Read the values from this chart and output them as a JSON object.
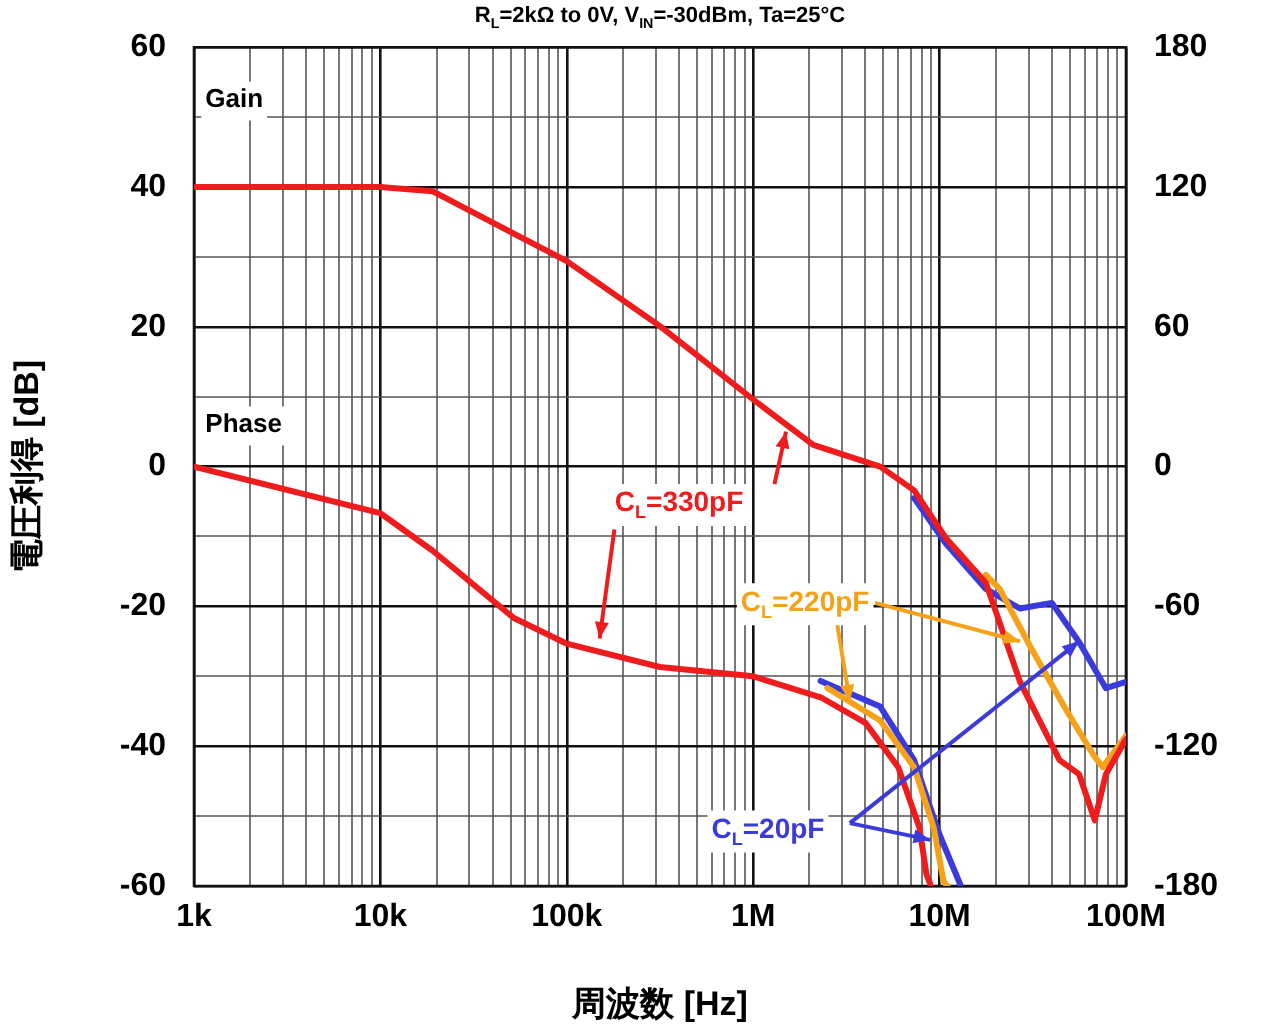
{
  "chart_data": {
    "type": "line",
    "title": "R$_{L}$=2kΩ to 0V, V$_{IN}$=-30dBm, Ta=25°C",
    "xlabel": "周波数 [Hz]",
    "ylabel": "電圧利得 [dB]",
    "log": "x",
    "grid": true,
    "legend": false,
    "marker": "none",
    "xlim": [
      1000,
      100000000
    ],
    "xticks": [
      {
        "value": 1000,
        "label": "1k"
      },
      {
        "value": 2000,
        "label": null
      },
      {
        "value": 3000,
        "label": null
      },
      {
        "value": 4000,
        "label": null
      },
      {
        "value": 5000,
        "label": null
      },
      {
        "value": 6000,
        "label": null
      },
      {
        "value": 7000,
        "label": null
      },
      {
        "value": 8000,
        "label": null
      },
      {
        "value": 9000,
        "label": null
      },
      {
        "value": 10000,
        "label": "10k"
      },
      {
        "value": 20000,
        "label": null
      },
      {
        "value": 30000,
        "label": null
      },
      {
        "value": 40000,
        "label": null
      },
      {
        "value": 50000,
        "label": null
      },
      {
        "value": 60000,
        "label": null
      },
      {
        "value": 70000,
        "label": null
      },
      {
        "value": 80000,
        "label": null
      },
      {
        "value": 90000,
        "label": null
      },
      {
        "value": 100000,
        "label": "100k"
      },
      {
        "value": 200000,
        "label": null
      },
      {
        "value": 300000,
        "label": null
      },
      {
        "value": 400000,
        "label": null
      },
      {
        "value": 500000,
        "label": null
      },
      {
        "value": 600000,
        "label": null
      },
      {
        "value": 700000,
        "label": null
      },
      {
        "value": 800000,
        "label": null
      },
      {
        "value": 900000,
        "label": null
      },
      {
        "value": 1000000,
        "label": "1M"
      },
      {
        "value": 2000000,
        "label": null
      },
      {
        "value": 3000000,
        "label": null
      },
      {
        "value": 4000000,
        "label": null
      },
      {
        "value": 5000000,
        "label": null
      },
      {
        "value": 6000000,
        "label": null
      },
      {
        "value": 7000000,
        "label": null
      },
      {
        "value": 8000000,
        "label": null
      },
      {
        "value": 9000000,
        "label": null
      },
      {
        "value": 10000000,
        "label": "10M"
      },
      {
        "value": 20000000,
        "label": null
      },
      {
        "value": 30000000,
        "label": null
      },
      {
        "value": 40000000,
        "label": null
      },
      {
        "value": 50000000,
        "label": null
      },
      {
        "value": 60000000,
        "label": null
      },
      {
        "value": 70000000,
        "label": null
      },
      {
        "value": 80000000,
        "label": null
      },
      {
        "value": 90000000,
        "label": null
      },
      {
        "value": 100000000,
        "label": "100M"
      }
    ],
    "ylim": [
      -60,
      60
    ],
    "yticks": [
      -60,
      {
        "value": -50,
        "label": null
      },
      -40,
      {
        "value": -30,
        "label": null
      },
      -20,
      {
        "value": -10,
        "label": null
      },
      0,
      {
        "value": 10,
        "label": null
      },
      20,
      {
        "value": 30,
        "label": null
      },
      40,
      {
        "value": 50,
        "label": null
      },
      60
    ],
    "y2lim": [
      -180,
      180
    ],
    "y2ticks": [
      -180,
      -120,
      -60,
      0,
      60,
      120,
      180
    ],
    "series": [
      {
        "color": "#3b3bdb",
        "x": [
          7300000,
          10800000,
          17700000,
          27000000,
          40000000,
          56000000,
          78000000,
          100000000
        ],
        "values": [
          -4.5,
          -11,
          -17.5,
          -20.3,
          -19.5,
          -25.1,
          -31.7,
          -30.8
        ]
      },
      {
        "color": "#f5a21b",
        "x": [
          17700000,
          21000000,
          31000000,
          47000000,
          67000000,
          75000000,
          100000000
        ],
        "values": [
          -15.5,
          -17.5,
          -26,
          -34.5,
          -41.3,
          -43,
          -38.5
        ]
      },
      {
        "color": "#ee1c1c",
        "x": [
          1000,
          10000,
          19000,
          100000,
          316000,
          1000000,
          2100000,
          4800000,
          7300000,
          10800000,
          17700000,
          27000000,
          44000000,
          56000000,
          68000000,
          78000000,
          100000000
        ],
        "values": [
          40,
          40,
          39.4,
          29.4,
          20.1,
          9.6,
          3.1,
          0,
          -3.4,
          -10.2,
          -16.6,
          -30.8,
          -42,
          -44,
          -50.6,
          -44,
          -39
        ]
      },
      {
        "color": "#3b3bdb",
        "axis": "y2",
        "x": [
          2300000,
          4800000,
          7300000,
          10000000,
          13000000
        ],
        "values": [
          -92,
          -103,
          -126,
          -158,
          -180
        ]
      },
      {
        "color": "#f5a21b",
        "axis": "y2",
        "x": [
          2500000,
          4800000,
          7300000,
          9300000,
          10500000,
          11000000
        ],
        "values": [
          -95,
          -109,
          -129,
          -155,
          -178,
          -180
        ]
      },
      {
        "color": "#ee1c1c",
        "axis": "y2",
        "x": [
          1000,
          10000,
          19000,
          52000,
          100000,
          316000,
          1000000,
          2300000,
          4000000,
          6000000,
          7800000,
          8500000,
          9000000
        ],
        "values": [
          0,
          -20,
          -36,
          -65,
          -76,
          -86,
          -90,
          -99,
          -110,
          -129,
          -155,
          -175,
          -180
        ]
      }
    ],
    "annotations": [
      "Gain",
      "Phase",
      {
        "text": "C$_{L}$=330pF",
        "x": 1500000,
        "y": 5
      },
      {
        "text": "C$_{L}$=220pF",
        "x": 27000000,
        "y": -25
      },
      {
        "text": "C$_{L}$=20pF",
        "x": 56000000,
        "y": -25
      }
    ]
  }
}
